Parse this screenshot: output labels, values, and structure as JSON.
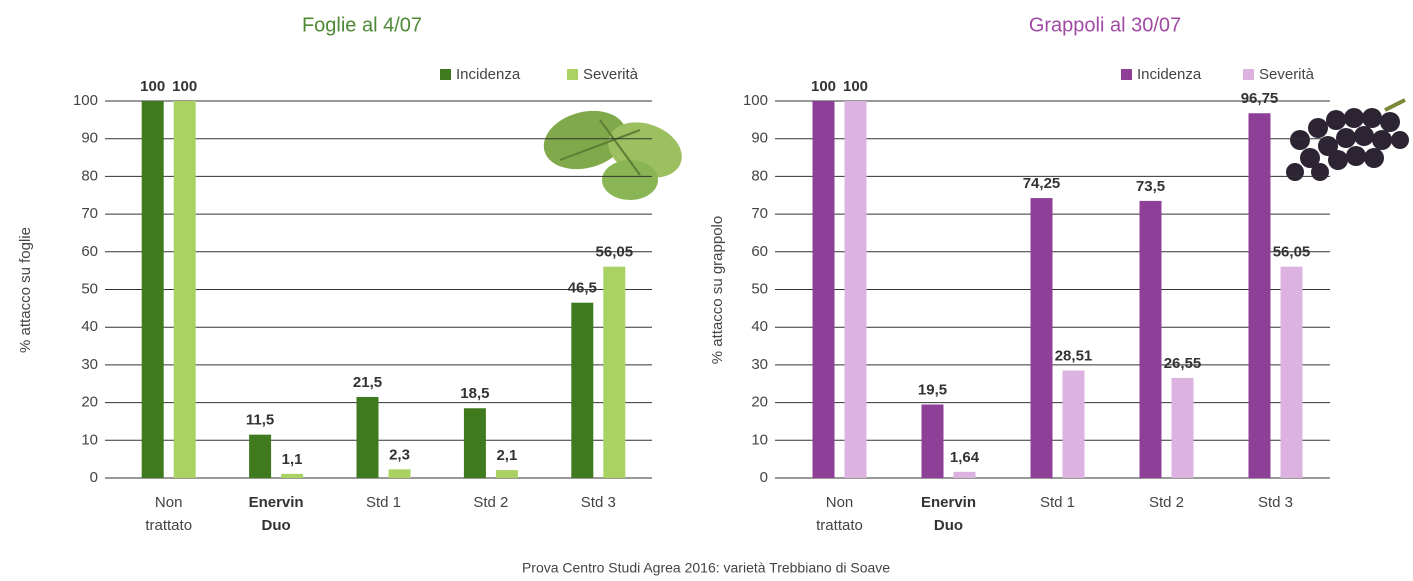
{
  "chart_data": [
    {
      "type": "bar",
      "title": "Foglie al 4/07",
      "y_label": "% attacco su foglie",
      "categories": [
        "Non trattato",
        "Enervin Duo",
        "Std 1",
        "Std 2",
        "Std 3"
      ],
      "series": [
        {
          "name": "Incidenza",
          "color": "#3f7a1f",
          "values": [
            100,
            11.5,
            21.5,
            18.5,
            46.5
          ],
          "value_labels": [
            "100",
            "11,5",
            "21,5",
            "18,5",
            "46,5"
          ]
        },
        {
          "name": "Severità",
          "color": "#a9d262",
          "values": [
            100,
            1.1,
            2.3,
            2.1,
            56.05
          ],
          "value_labels": [
            "100",
            "1,1",
            "2,3",
            "2,1",
            "56,05"
          ]
        }
      ],
      "title_color": "#4e8a35",
      "ylim": [
        0,
        100
      ],
      "yticks": [
        0,
        10,
        20,
        30,
        40,
        50,
        60,
        70,
        80,
        90,
        100
      ],
      "grid": true,
      "legend": "top-right"
    },
    {
      "type": "bar",
      "title": "Grappoli al 30/07",
      "y_label": "% attacco su grappolo",
      "categories": [
        "Non trattato",
        "Enervin Duo",
        "Std 1",
        "Std 2",
        "Std 3"
      ],
      "series": [
        {
          "name": "Incidenza",
          "color": "#8e3f97",
          "values": [
            100,
            19.5,
            74.25,
            73.5,
            96.75
          ],
          "value_labels": [
            "100",
            "19,5",
            "74,25",
            "73,5",
            "96,75"
          ]
        },
        {
          "name": "Severità",
          "color": "#dcb3e0",
          "values": [
            100,
            1.64,
            28.51,
            26.55,
            56.05
          ],
          "value_labels": [
            "100",
            "1,64",
            "28,51",
            "26,55",
            "56,05"
          ]
        }
      ],
      "title_color": "#a04aa3",
      "ylim": [
        0,
        100
      ],
      "yticks": [
        0,
        10,
        20,
        30,
        40,
        50,
        60,
        70,
        80,
        90,
        100
      ],
      "grid": true,
      "legend": "top-right"
    }
  ],
  "caption": "Prova Centro Studi Agrea 2016: varietà Trebbiano di Soave"
}
